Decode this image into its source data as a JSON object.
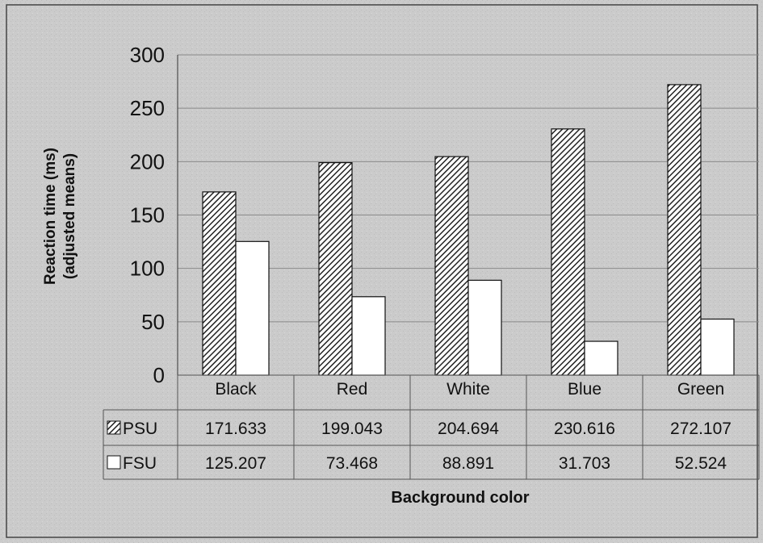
{
  "chart_data": {
    "type": "bar",
    "categories": [
      "Black",
      "Red",
      "White",
      "Blue",
      "Green"
    ],
    "series": [
      {
        "name": "PSU",
        "values": [
          171.633,
          199.043,
          204.694,
          230.616,
          272.107
        ],
        "value_labels": [
          "171.633",
          "199.043",
          "204.694",
          "230.616",
          "272.107"
        ],
        "pattern": "diagonal-hatch"
      },
      {
        "name": "FSU",
        "values": [
          125.207,
          73.468,
          88.891,
          31.703,
          52.524
        ],
        "value_labels": [
          "125.207",
          "73.468",
          "88.891",
          "31.703",
          "52.524"
        ],
        "pattern": "solid-white"
      }
    ],
    "ylabel_line1": "Reaction time (ms)",
    "ylabel_line2": "(adjusted means)",
    "xlabel": "Background color",
    "ylim": [
      0,
      300
    ],
    "yticks": [
      0,
      50,
      100,
      150,
      200,
      250,
      300
    ],
    "grid": true,
    "legend": "data-table",
    "colors": {
      "background": "#c9c9c9",
      "bar_fill": "#ffffff",
      "bar_stroke": "#111111",
      "hatch": "#222222",
      "grid": "#8a8a8a"
    }
  }
}
